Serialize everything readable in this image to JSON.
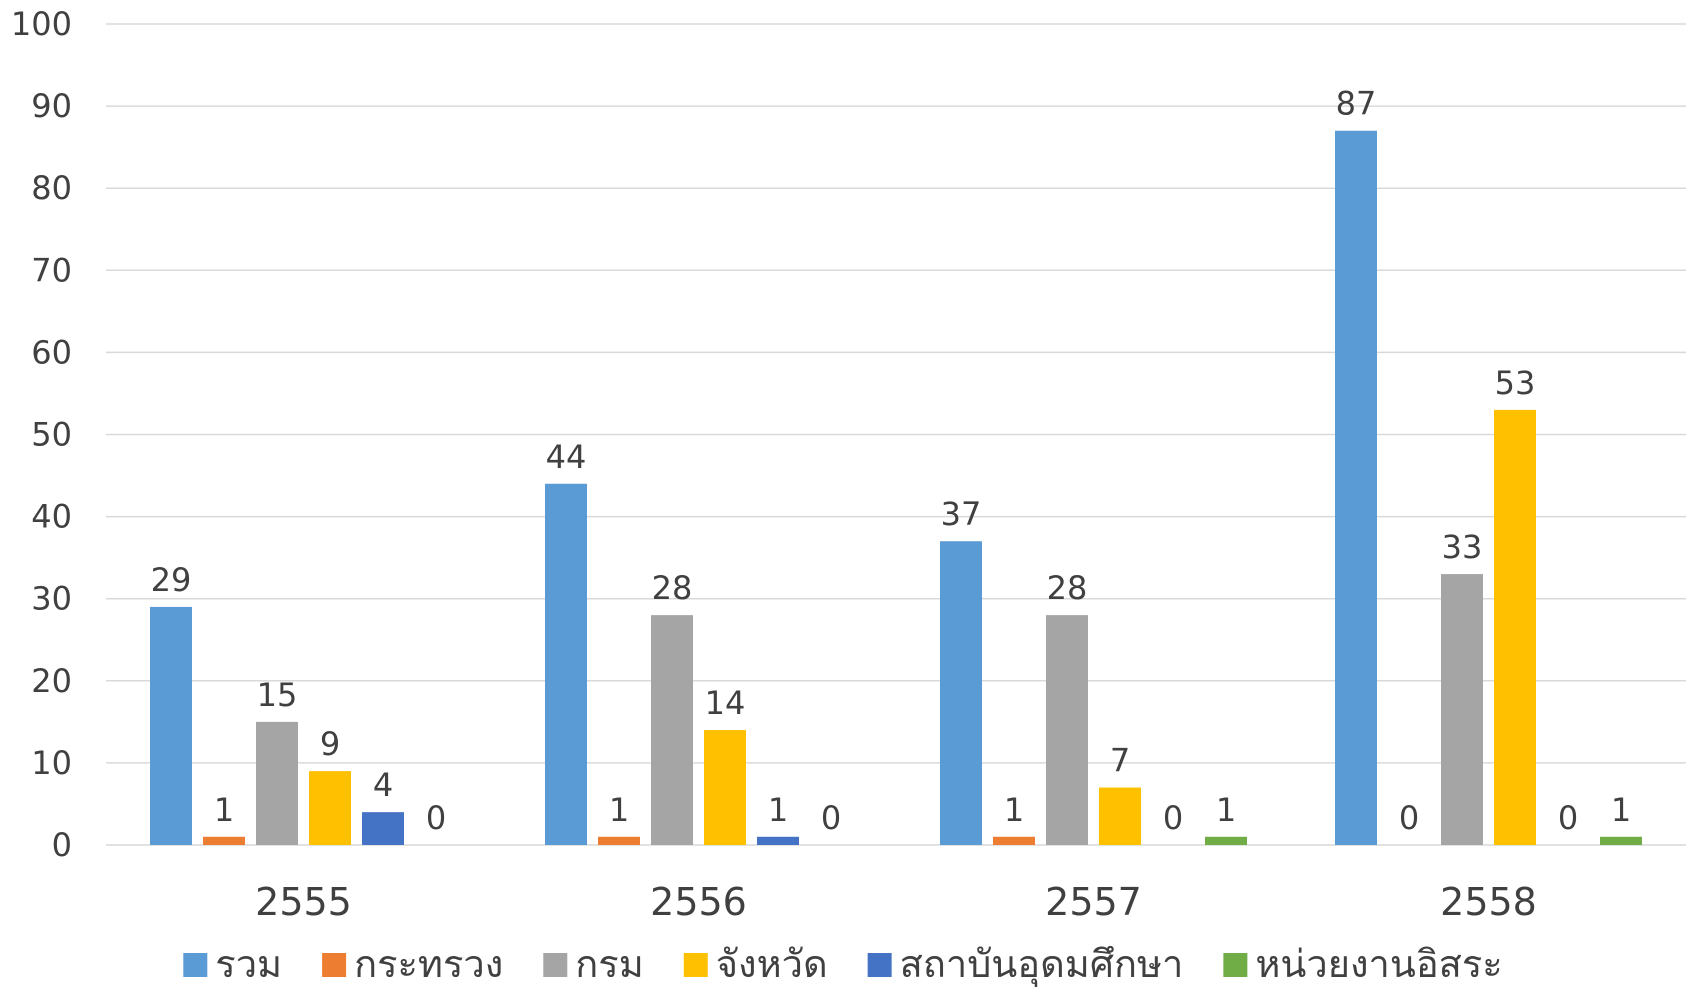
{
  "chart_data": {
    "type": "bar",
    "categories": [
      "2555",
      "2556",
      "2557",
      "2558"
    ],
    "series": [
      {
        "name": "รวม",
        "color": "#5B9BD5",
        "values": [
          29,
          44,
          37,
          87
        ]
      },
      {
        "name": "กระทรวง",
        "color": "#ED7D31",
        "values": [
          1,
          1,
          1,
          0
        ]
      },
      {
        "name": "กรม",
        "color": "#A5A5A5",
        "values": [
          15,
          28,
          28,
          33
        ]
      },
      {
        "name": "จังหวัด",
        "color": "#FFC000",
        "values": [
          9,
          14,
          7,
          53
        ]
      },
      {
        "name": "สถาบันอุดมศึกษา",
        "color": "#4472C4",
        "values": [
          4,
          1,
          0,
          0
        ]
      },
      {
        "name": "หน่วยงานอิสระ",
        "color": "#70AD47",
        "values": [
          0,
          0,
          1,
          1
        ]
      }
    ],
    "ylim": [
      0,
      100
    ],
    "yticks": [
      0,
      10,
      20,
      30,
      40,
      50,
      60,
      70,
      80,
      90,
      100
    ],
    "grid": true,
    "gridColor": "#D9D9D9",
    "legend": "bottom"
  }
}
